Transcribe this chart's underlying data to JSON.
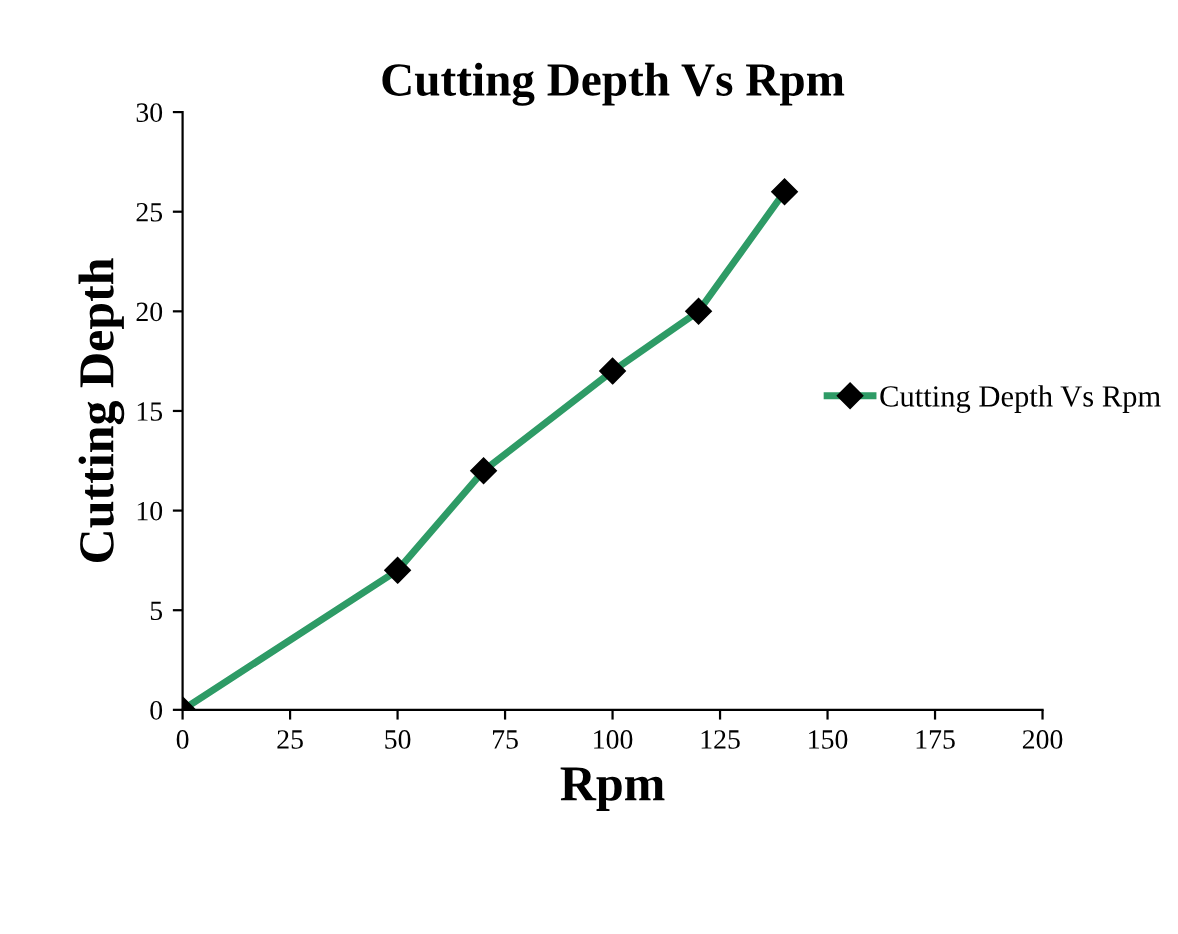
{
  "chart_data": {
    "type": "line",
    "title": "Cutting Depth Vs Rpm",
    "xlabel": "Rpm",
    "ylabel": "Cutting Depth",
    "x": [
      0,
      50,
      70,
      100,
      120,
      140
    ],
    "series": [
      {
        "name": "Cutting Depth Vs Rpm",
        "color": "#2e9b66",
        "values": [
          0,
          7,
          12,
          17,
          20,
          26
        ]
      }
    ],
    "xlim": [
      0,
      200
    ],
    "xticks": [
      0,
      25,
      50,
      75,
      100,
      125,
      150,
      175,
      200
    ],
    "ylim": [
      0,
      30
    ],
    "yticks": [
      0,
      5,
      10,
      15,
      20,
      25,
      30
    ],
    "marker": "diamond",
    "grid": false,
    "legend": "right"
  }
}
